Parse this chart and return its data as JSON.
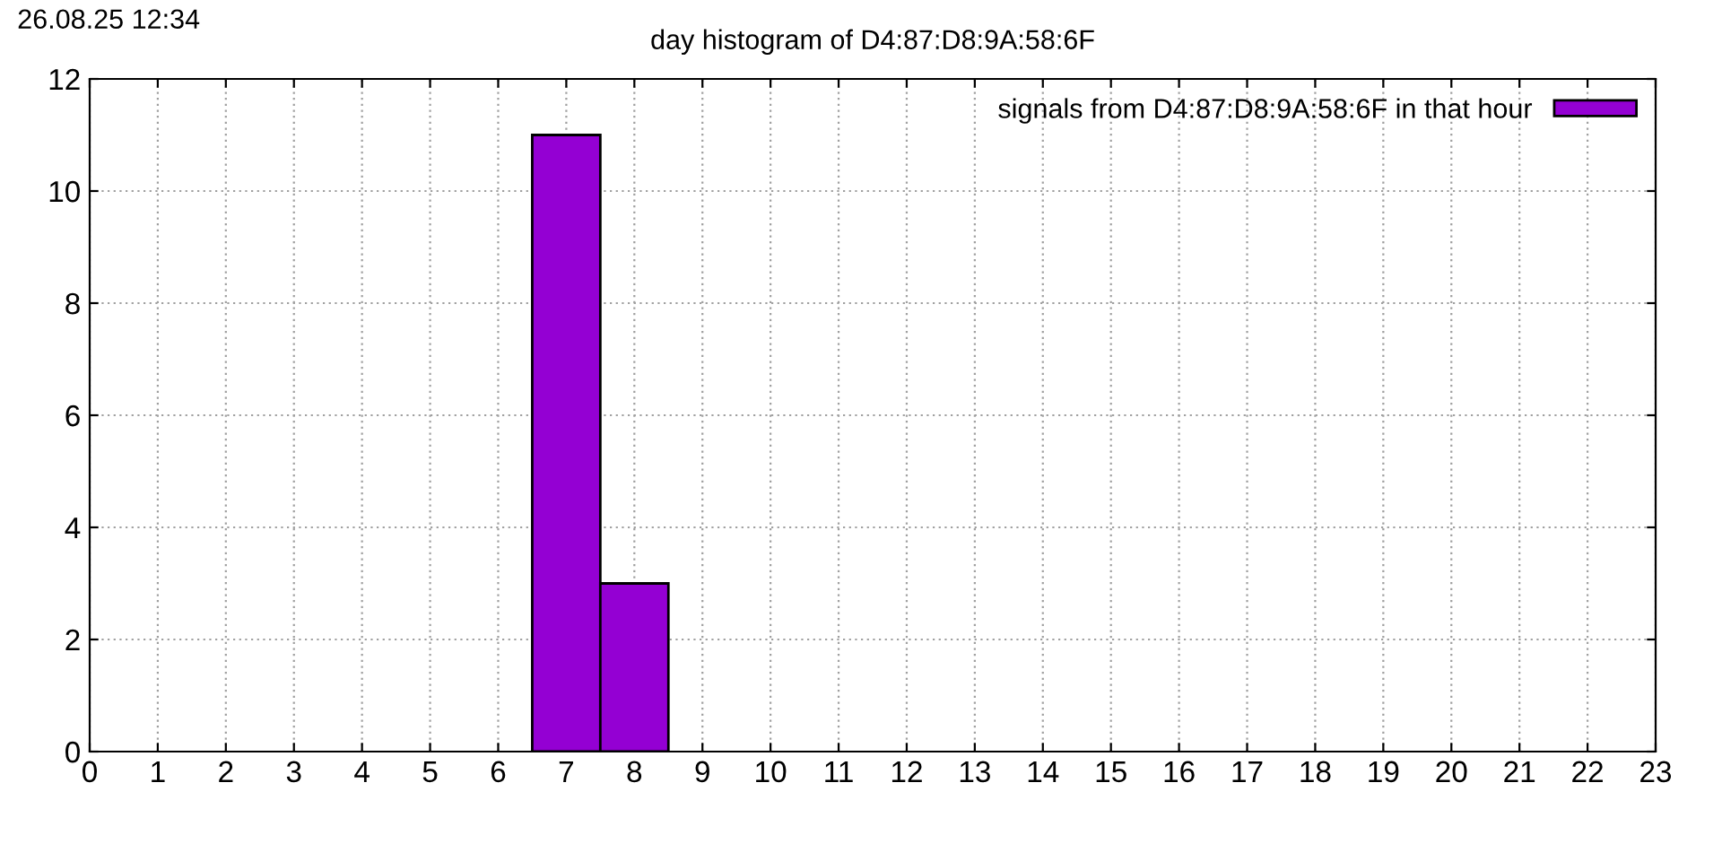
{
  "chart_data": {
    "type": "histogram",
    "title": "day histogram of D4:87:D8:9A:58:6F",
    "annotations": [
      "26.08.25 12:34"
    ],
    "bins": [
      6.5,
      7.5,
      8.5
    ],
    "series": [
      {
        "name": "signals from D4:87:D8:9A:58:6F in that hour",
        "color": "#9400d3",
        "values": [
          11,
          3
        ]
      }
    ],
    "xlim": [
      0,
      23
    ],
    "xticks": [
      0,
      1,
      2,
      3,
      4,
      5,
      6,
      7,
      8,
      9,
      10,
      11,
      12,
      13,
      14,
      15,
      16,
      17,
      18,
      19,
      20,
      21,
      22,
      23
    ],
    "ylim": [
      0,
      12
    ],
    "yticks": [
      0,
      2,
      4,
      6,
      8,
      10,
      12
    ],
    "grid": true,
    "legend": "top right"
  }
}
